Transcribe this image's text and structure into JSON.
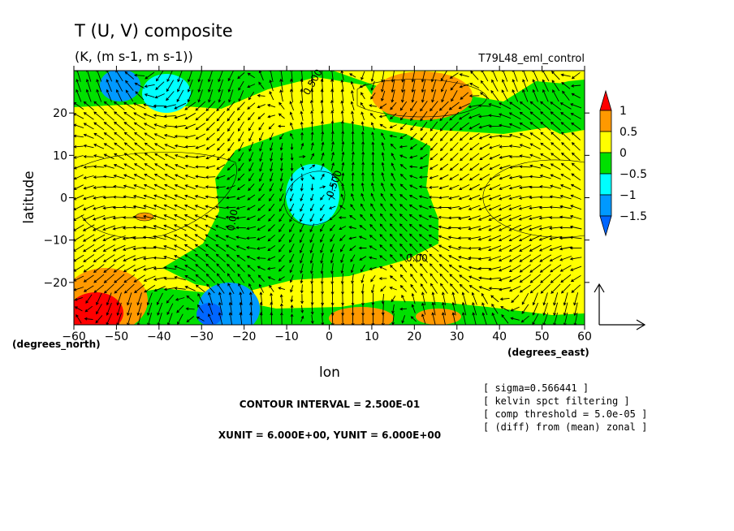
{
  "chart_data": {
    "type": "contour-vector-map",
    "title": "T (U, V) composite",
    "units": "(K, (m s-1, m s-1))",
    "run_label": "T79L48_eml_control",
    "xlabel": "lon",
    "ylabel": "latitude",
    "x_unit_label": "(degrees_east)",
    "y_unit_label": "(degrees_north)",
    "xlim": [
      -60,
      60
    ],
    "ylim": [
      -30,
      30
    ],
    "x_ticks": [
      -60,
      -50,
      -40,
      -30,
      -20,
      -10,
      0,
      10,
      20,
      30,
      40,
      50,
      60
    ],
    "y_ticks": [
      -20,
      -10,
      0,
      10,
      20
    ],
    "colorbar": {
      "labels": [
        "1",
        "0.5",
        "0",
        "-0.5",
        "-1",
        "-1.5"
      ],
      "colors": [
        "#ff0000",
        "#ff9900",
        "#ffff00",
        "#00e000",
        "#00ffff",
        "#0099ff",
        "#0066ff"
      ]
    },
    "contour_labels": [
      "0.500",
      "-0.500",
      "0.00",
      "0.00"
    ],
    "contour_interval": "CONTOUR INTERVAL = 2.500E-01",
    "vector_units": "XUNIT = 6.000E+00, YUNIT = 6.000E+00",
    "info_lines": [
      "[ sigma=0.566441 ]",
      "[ kelvin spct filtering ]",
      "[ comp threshold = 5.0e-05 ]",
      "[ (diff) from (mean) zonal ]"
    ]
  }
}
